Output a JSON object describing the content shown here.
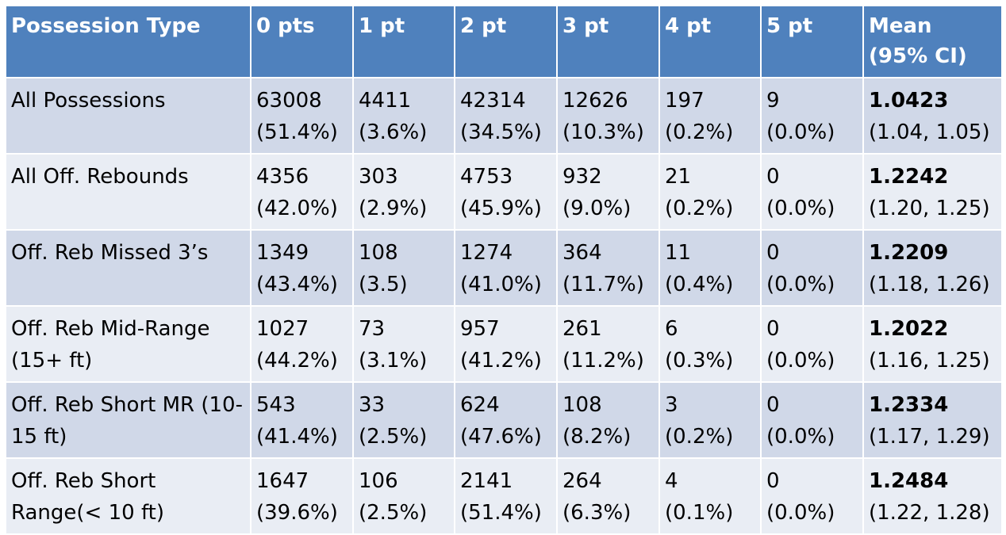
{
  "columns": [
    "Possession Type",
    "0 pts",
    "1 pt",
    "2 pt",
    "3 pt",
    "4 pt",
    "5 pt",
    "Mean (95% CI)"
  ],
  "rows": [
    {
      "label": "All Possessions",
      "cells": [
        [
          "63008",
          "(51.4%)"
        ],
        [
          "4411",
          "(3.6%)"
        ],
        [
          "42314",
          "(34.5%)"
        ],
        [
          "12626",
          "(10.3%)"
        ],
        [
          "197",
          "(0.2%)"
        ],
        [
          "9",
          "(0.0%)"
        ]
      ],
      "mean": "1.0423",
      "ci": "(1.04, 1.05)"
    },
    {
      "label": "All Off. Rebounds",
      "cells": [
        [
          "4356",
          "(42.0%)"
        ],
        [
          "303",
          "(2.9%)"
        ],
        [
          "4753",
          "(45.9%)"
        ],
        [
          "932",
          "(9.0%)"
        ],
        [
          "21",
          "(0.2%)"
        ],
        [
          "0",
          "(0.0%)"
        ]
      ],
      "mean": "1.2242",
      "ci": "(1.20, 1.25)"
    },
    {
      "label": "Off. Reb Missed 3’s",
      "cells": [
        [
          "1349",
          "(43.4%)"
        ],
        [
          "108",
          "(3.5)"
        ],
        [
          "1274",
          "(41.0%)"
        ],
        [
          "364",
          "(11.7%)"
        ],
        [
          "11",
          "(0.4%)"
        ],
        [
          "0",
          "(0.0%)"
        ]
      ],
      "mean": "1.2209",
      "ci": "(1.18, 1.26)"
    },
    {
      "label": "Off. Reb Mid-Range (15+ ft)",
      "cells": [
        [
          "1027",
          "(44.2%)"
        ],
        [
          "73",
          "(3.1%)"
        ],
        [
          "957",
          "(41.2%)"
        ],
        [
          "261",
          "(11.2%)"
        ],
        [
          "6",
          "(0.3%)"
        ],
        [
          "0",
          "(0.0%)"
        ]
      ],
      "mean": "1.2022",
      "ci": "(1.16, 1.25)"
    },
    {
      "label": "Off. Reb Short MR (10-15 ft)",
      "cells": [
        [
          "543",
          "(41.4%)"
        ],
        [
          "33",
          "(2.5%)"
        ],
        [
          "624",
          "(47.6%)"
        ],
        [
          "108",
          "(8.2%)"
        ],
        [
          "3",
          "(0.2%)"
        ],
        [
          "0",
          "(0.0%)"
        ]
      ],
      "mean": "1.2334",
      "ci": "(1.17, 1.29)"
    },
    {
      "label": "Off. Reb Short Range(< 10 ft)",
      "cells": [
        [
          "1647",
          "(39.6%)"
        ],
        [
          "106",
          "(2.5%)"
        ],
        [
          "2141",
          "(51.4%)"
        ],
        [
          "264",
          "(6.3%)"
        ],
        [
          "4",
          "(0.1%)"
        ],
        [
          "0",
          "(0.0%)"
        ]
      ],
      "mean": "1.2484",
      "ci": "(1.22, 1.28)"
    }
  ]
}
